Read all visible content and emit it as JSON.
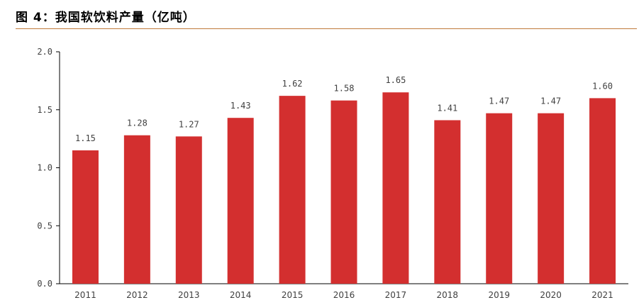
{
  "header": {
    "figure_label": "图 4：",
    "figure_title": "我国软饮料产量（亿吨）"
  },
  "chart_data": {
    "type": "bar",
    "title": "我国软饮料产量（亿吨）",
    "xlabel": "",
    "ylabel": "",
    "categories": [
      "2011",
      "2012",
      "2013",
      "2014",
      "2015",
      "2016",
      "2017",
      "2018",
      "2019",
      "2020",
      "2021"
    ],
    "values": [
      1.15,
      1.28,
      1.27,
      1.43,
      1.62,
      1.58,
      1.65,
      1.41,
      1.47,
      1.47,
      1.6
    ],
    "value_labels": [
      "1.15",
      "1.28",
      "1.27",
      "1.43",
      "1.62",
      "1.58",
      "1.65",
      "1.41",
      "1.47",
      "1.47",
      "1.60"
    ],
    "ylim": [
      0,
      2.0
    ],
    "yticks": [
      0,
      0.5,
      1.0,
      1.5,
      2.0
    ],
    "ytick_labels": [
      "0.0",
      "0.5",
      "1.0",
      "1.5",
      "2.0"
    ],
    "grid": false,
    "legend": "none",
    "bar_color": "#d32f2f",
    "axis_color": "#000000"
  }
}
